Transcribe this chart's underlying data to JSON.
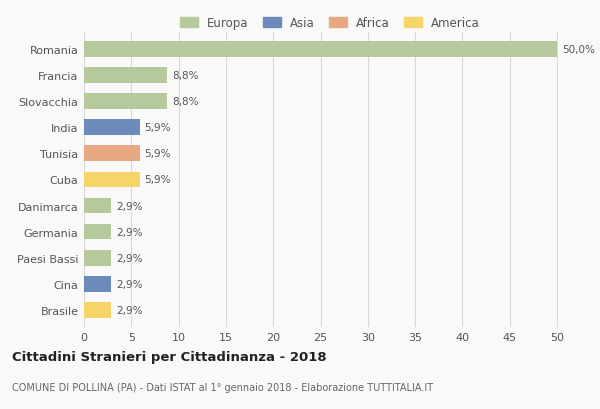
{
  "countries": [
    "Brasile",
    "Cina",
    "Paesi Bassi",
    "Germania",
    "Danimarca",
    "Cuba",
    "Tunisia",
    "India",
    "Slovacchia",
    "Francia",
    "Romania"
  ],
  "values": [
    2.9,
    2.9,
    2.9,
    2.9,
    2.9,
    5.9,
    5.9,
    5.9,
    8.8,
    8.8,
    50.0
  ],
  "labels": [
    "2,9%",
    "2,9%",
    "2,9%",
    "2,9%",
    "2,9%",
    "5,9%",
    "5,9%",
    "5,9%",
    "8,8%",
    "8,8%",
    "50,0%"
  ],
  "colors": [
    "#f5d469",
    "#6b8cba",
    "#b5c99a",
    "#b5c99a",
    "#b5c99a",
    "#f5d469",
    "#e8a882",
    "#6b8cba",
    "#b5c99a",
    "#b5c99a",
    "#b5c99a"
  ],
  "legend_labels": [
    "Europa",
    "Asia",
    "Africa",
    "America"
  ],
  "legend_colors": [
    "#b5c99a",
    "#6b8cba",
    "#e8a882",
    "#f5d469"
  ],
  "title": "Cittadini Stranieri per Cittadinanza - 2018",
  "subtitle": "COMUNE DI POLLINA (PA) - Dati ISTAT al 1° gennaio 2018 - Elaborazione TUTTITALIA.IT",
  "xlim": [
    0,
    52
  ],
  "xticks": [
    0,
    5,
    10,
    15,
    20,
    25,
    30,
    35,
    40,
    45,
    50
  ],
  "bg_color": "#f9f9f9",
  "grid_color": "#d8d8d8",
  "bar_height": 0.6
}
